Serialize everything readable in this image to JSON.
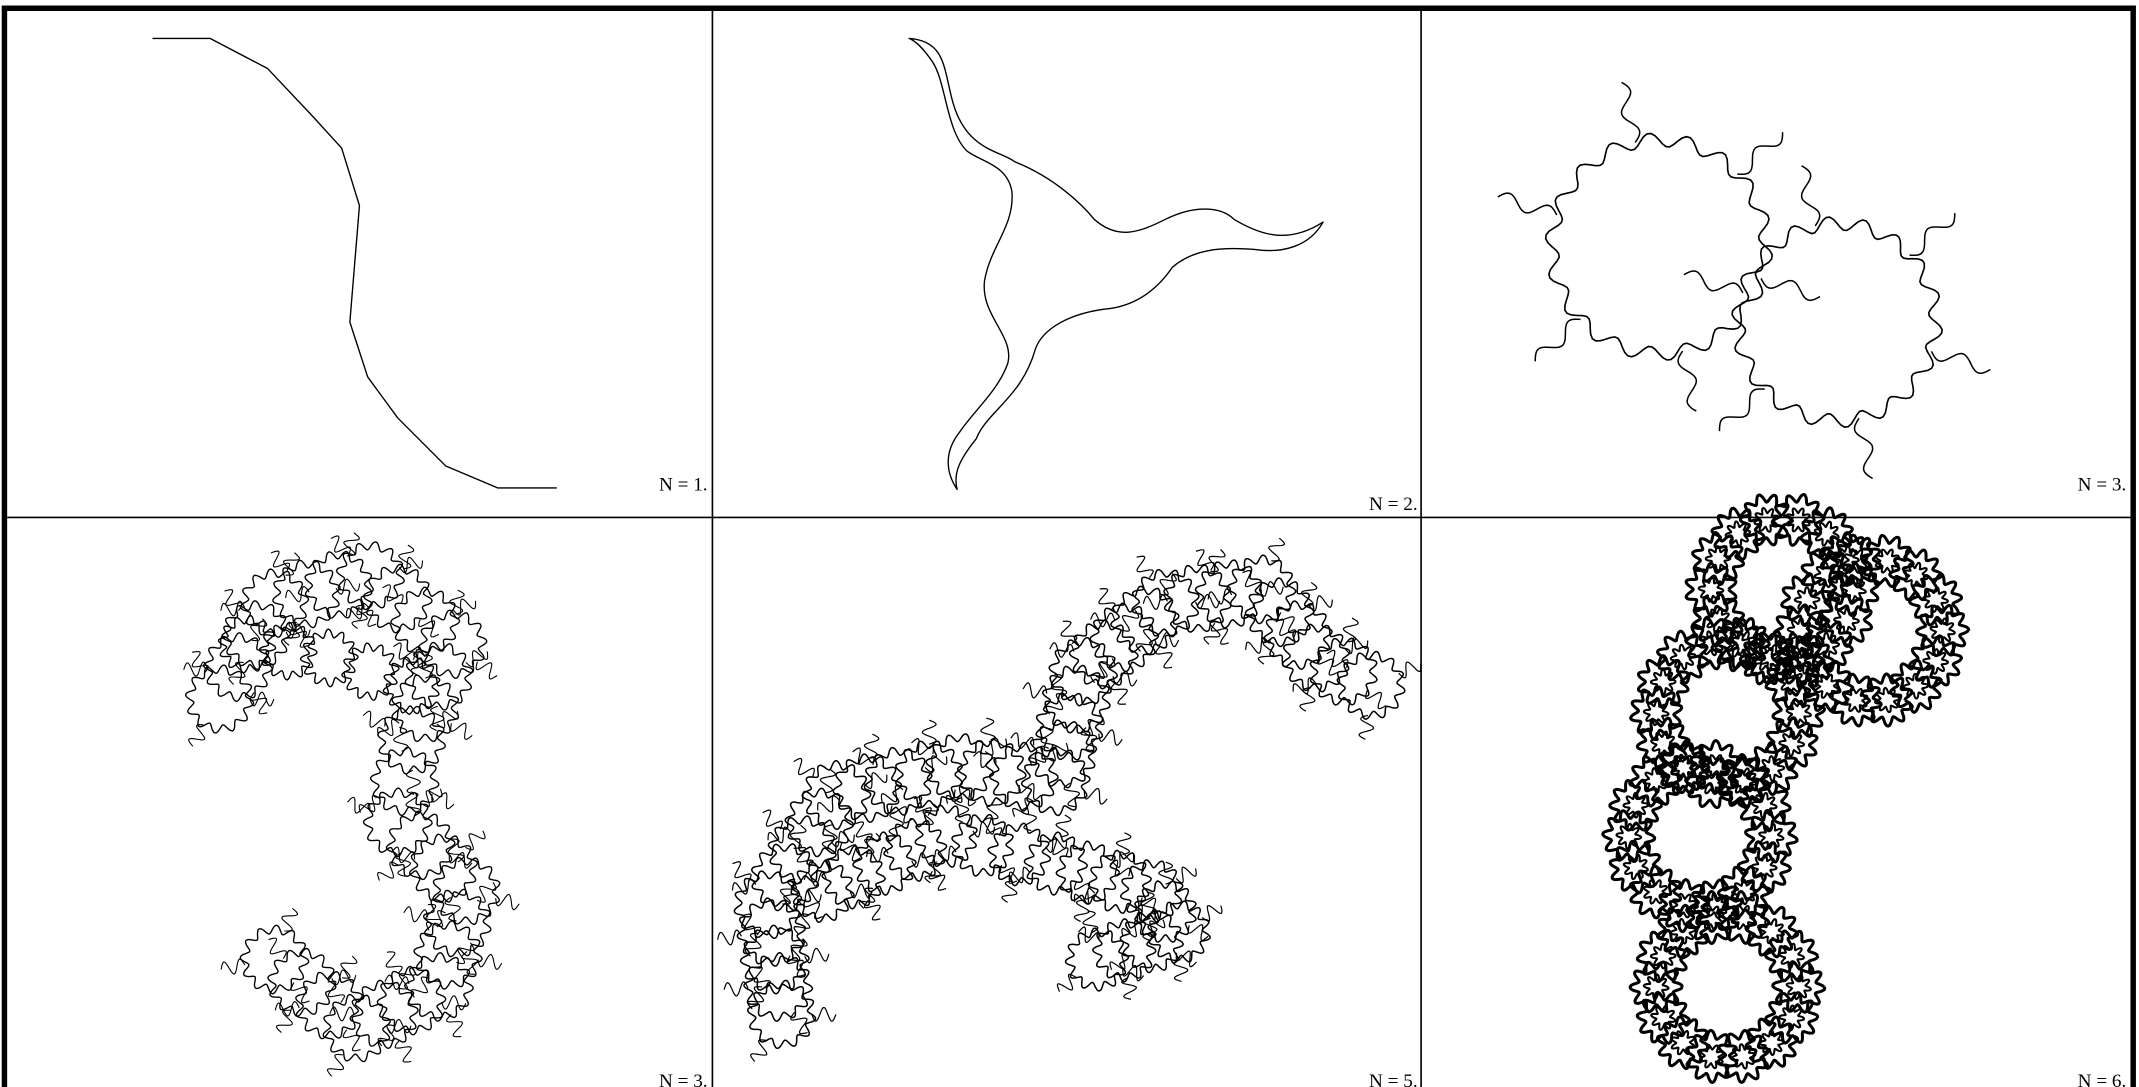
{
  "panels": [
    {
      "label": "N = 1."
    },
    {
      "label": "N = 2."
    },
    {
      "label": "N = 3."
    },
    {
      "label": "N = 3."
    },
    {
      "label": "N = 5."
    },
    {
      "label": "N = 6."
    }
  ]
}
